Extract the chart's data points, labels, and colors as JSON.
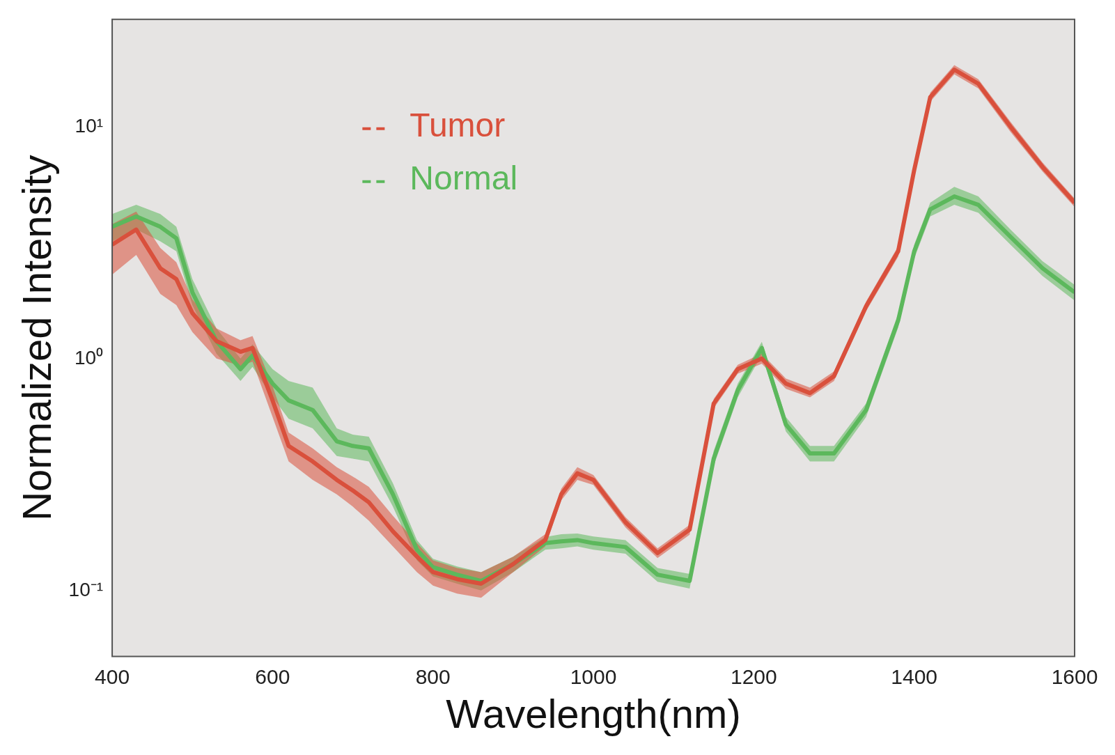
{
  "chart_data": {
    "type": "line",
    "xlabel": "Wavelength(nm)",
    "ylabel": "Normalized Intensity",
    "log": "y",
    "grid": false,
    "legend": "top left",
    "marker": "none",
    "line_style": "solid",
    "xlim": [
      400,
      1600
    ],
    "xticks": [
      400,
      600,
      800,
      1000,
      1200,
      1400,
      1600
    ],
    "ylim": [
      0.052,
      29
    ],
    "yticks": [
      {
        "value": 0.1,
        "label": "10⁻¹"
      },
      {
        "value": 1,
        "label": "10⁰"
      },
      {
        "value": 10,
        "label": "10¹"
      }
    ],
    "x": [
      400,
      430,
      460,
      480,
      500,
      530,
      560,
      575,
      600,
      620,
      650,
      680,
      700,
      720,
      750,
      780,
      800,
      830,
      860,
      900,
      940,
      960,
      980,
      1000,
      1040,
      1080,
      1120,
      1150,
      1180,
      1210,
      1240,
      1270,
      1300,
      1340,
      1380,
      1400,
      1420,
      1450,
      1480,
      1520,
      1560,
      1600
    ],
    "series": [
      {
        "name": "Tumor",
        "color": "#d9503c",
        "values": [
          3.1,
          3.6,
          2.45,
          2.2,
          1.57,
          1.19,
          1.07,
          1.11,
          0.66,
          0.42,
          0.36,
          0.3,
          0.27,
          0.24,
          0.18,
          0.14,
          0.12,
          0.112,
          0.107,
          0.13,
          0.165,
          0.26,
          0.32,
          0.3,
          0.197,
          0.145,
          0.183,
          0.64,
          0.9,
          1.0,
          0.78,
          0.71,
          0.84,
          1.68,
          2.9,
          6.5,
          13.4,
          17.6,
          15.3,
          10,
          6.7,
          4.7
        ],
        "lower": [
          2.3,
          2.8,
          1.9,
          1.7,
          1.3,
          1.0,
          0.93,
          0.97,
          0.56,
          0.36,
          0.3,
          0.26,
          0.23,
          0.2,
          0.155,
          0.12,
          0.105,
          0.097,
          0.093,
          0.12,
          0.155,
          0.245,
          0.3,
          0.285,
          0.187,
          0.138,
          0.174,
          0.61,
          0.86,
          0.95,
          0.74,
          0.68,
          0.8,
          1.6,
          2.75,
          6.2,
          12.8,
          16.8,
          14.6,
          9.5,
          6.4,
          4.5
        ],
        "upper": [
          3.8,
          4.3,
          3.0,
          2.6,
          1.8,
          1.35,
          1.2,
          1.25,
          0.76,
          0.48,
          0.41,
          0.34,
          0.31,
          0.28,
          0.21,
          0.16,
          0.135,
          0.125,
          0.12,
          0.14,
          0.175,
          0.275,
          0.34,
          0.315,
          0.207,
          0.152,
          0.192,
          0.67,
          0.94,
          1.05,
          0.82,
          0.75,
          0.88,
          1.76,
          3.05,
          6.8,
          14,
          18.4,
          16,
          10.5,
          7,
          4.9
        ]
      },
      {
        "name": "Normal",
        "color": "#5cb85c",
        "values": [
          3.7,
          4.1,
          3.7,
          3.3,
          1.93,
          1.19,
          0.9,
          1.03,
          0.78,
          0.66,
          0.6,
          0.44,
          0.42,
          0.41,
          0.26,
          0.15,
          0.126,
          0.117,
          0.11,
          0.13,
          0.16,
          0.163,
          0.165,
          0.16,
          0.154,
          0.117,
          0.11,
          0.37,
          0.73,
          1.11,
          0.52,
          0.39,
          0.39,
          0.6,
          1.46,
          2.9,
          4.4,
          5.0,
          4.6,
          3.35,
          2.45,
          1.93
        ],
        "lower": [
          3.2,
          3.6,
          3.2,
          2.9,
          1.7,
          1.05,
          0.8,
          0.92,
          0.68,
          0.55,
          0.5,
          0.38,
          0.37,
          0.36,
          0.23,
          0.135,
          0.115,
          0.107,
          0.1,
          0.12,
          0.15,
          0.152,
          0.155,
          0.15,
          0.144,
          0.109,
          0.102,
          0.345,
          0.68,
          1.04,
          0.485,
          0.36,
          0.36,
          0.56,
          1.36,
          2.7,
          4.1,
          4.6,
          4.25,
          3.1,
          2.27,
          1.78
        ],
        "upper": [
          4.2,
          4.6,
          4.2,
          3.7,
          2.2,
          1.35,
          1.0,
          1.15,
          0.9,
          0.8,
          0.75,
          0.5,
          0.47,
          0.46,
          0.29,
          0.165,
          0.137,
          0.127,
          0.12,
          0.14,
          0.17,
          0.175,
          0.176,
          0.171,
          0.165,
          0.125,
          0.118,
          0.4,
          0.78,
          1.18,
          0.56,
          0.42,
          0.42,
          0.64,
          1.56,
          3.1,
          4.7,
          5.5,
          5.0,
          3.6,
          2.63,
          2.08
        ]
      }
    ]
  }
}
